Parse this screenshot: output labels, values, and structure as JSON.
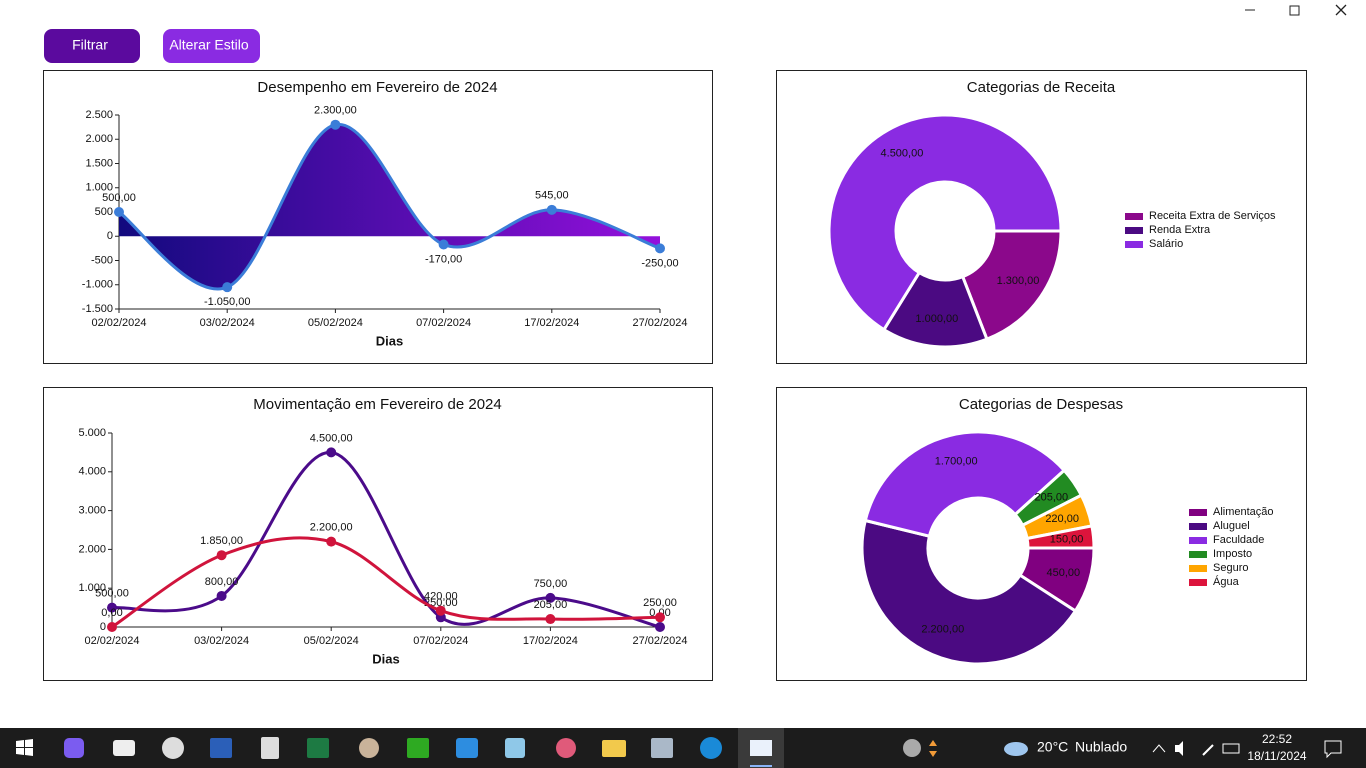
{
  "buttons": [
    "Filtrar",
    "Alterar Estilo"
  ],
  "chart_data": [
    {
      "type": "line",
      "title": "Desempenho em Fevereiro de 2024",
      "x_label": "Dias",
      "categories": [
        "02/02/2024",
        "03/02/2024",
        "05/02/2024",
        "07/02/2024",
        "17/02/2024",
        "27/02/2024"
      ],
      "values": [
        500,
        -1050,
        2300,
        -170,
        545,
        -250
      ],
      "value_labels": [
        "500,00",
        "-1.050,00",
        "2.300,00",
        "-170,00",
        "545,00",
        "-250,00"
      ],
      "color": "#3b7dd8",
      "fill_colors": [
        "#120a7e",
        "#9410dc"
      ],
      "ylim": [
        -1500,
        2500
      ],
      "yticks": [
        {
          "value": 2500,
          "label": "2.500"
        },
        {
          "value": 2000,
          "label": "2.000"
        },
        {
          "value": 1500,
          "label": "1.500"
        },
        {
          "value": 1000,
          "label": "1.000"
        },
        500,
        0,
        -500,
        {
          "value": -1000,
          "label": "-1.000"
        },
        {
          "value": -1500,
          "label": "-1.500"
        }
      ]
    },
    {
      "type": "pie",
      "title": "Categorias de Receita",
      "categories": [
        "Receita Extra de Serviços",
        "Renda Extra",
        "Salário"
      ],
      "values": [
        1300,
        1000,
        4500
      ],
      "value_labels": [
        "1.300,00",
        "1.000,00",
        "4.500,00"
      ],
      "colors": [
        "#8b088b",
        "#4b0a82",
        "#8a2be2"
      ],
      "legend": "right"
    },
    {
      "type": "line",
      "title": "Movimentação em Fevereiro de 2024",
      "x_label": "Dias",
      "categories": [
        "02/02/2024",
        "03/02/2024",
        "05/02/2024",
        "07/02/2024",
        "17/02/2024",
        "27/02/2024"
      ],
      "series": [
        {
          "color": "#4b0b8a",
          "label_color": "#111111",
          "values": [
            500,
            800,
            4500,
            250,
            750,
            0
          ],
          "value_labels": [
            "500,00",
            "800,00",
            "4.500,00",
            "250,00",
            "750,00",
            "0,00"
          ]
        },
        {
          "color": "#d0143c",
          "label_color": "#8b0a1a",
          "values": [
            0,
            1850,
            2200,
            420,
            205,
            250
          ],
          "value_labels": [
            "0,00",
            "1.850,00",
            "2.200,00",
            "420,00",
            "205,00",
            "250,00"
          ]
        }
      ],
      "ylim": [
        0,
        5000
      ],
      "yticks": [
        {
          "value": 5000,
          "label": "5.000"
        },
        {
          "value": 4000,
          "label": "4.000"
        },
        {
          "value": 3000,
          "label": "3.000"
        },
        {
          "value": 2000,
          "label": "2.000"
        },
        {
          "value": 1000,
          "label": "1.000"
        },
        0
      ]
    },
    {
      "type": "pie",
      "title": "Categorias de Despesas",
      "categories": [
        "Alimentação",
        "Aluguel",
        "Faculdade",
        "Imposto",
        "Seguro",
        "Água"
      ],
      "values": [
        450,
        2200,
        1700,
        205,
        220,
        150
      ],
      "value_labels": [
        "450,00",
        "2.200,00",
        "1.700,00",
        "205,00",
        "220,00",
        "150,00"
      ],
      "colors": [
        "#800080",
        "#4b0a82",
        "#8a2be2",
        "#228b22",
        "#ffa500",
        "#dc143c"
      ],
      "legend": "right"
    }
  ],
  "taskbar": {
    "temperature": "20°C",
    "weather": "Nublado",
    "time": "22:52",
    "date": "18/11/2024"
  }
}
